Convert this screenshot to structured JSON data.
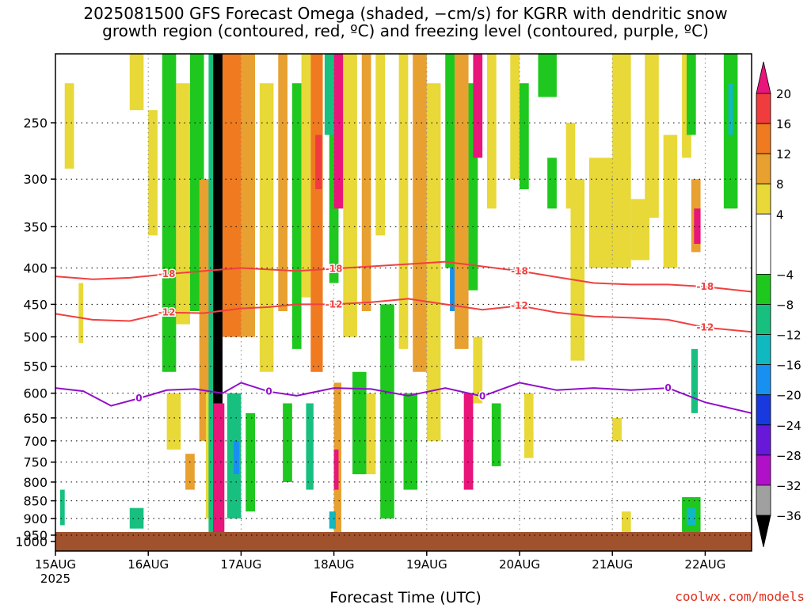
{
  "title_line1": "2025081500 GFS Forecast Omega (shaded, −cm/s) for KGRR with dendritic snow",
  "title_line2": "growth region (contoured, red, ºC) and freezing level (contoured, purple, ºC)",
  "credit": "coolwx.com/models",
  "chart_data": {
    "type": "heatmap",
    "title": "2025081500 GFS Forecast Omega (shaded, −cm/s) for KGRR with dendritic snow growth region (contoured, red, ºC) and freezing level (contoured, purple, ºC)",
    "xlabel": "Forecast Time (UTC)",
    "ylabel": "",
    "x_ticks": [
      "15AUG",
      "16AUG",
      "17AUG",
      "18AUG",
      "19AUG",
      "20AUG",
      "21AUG",
      "22AUG"
    ],
    "x_year": "2025",
    "xlim_days": [
      0,
      7.5
    ],
    "y_ticks": [
      250,
      300,
      350,
      400,
      450,
      500,
      550,
      600,
      650,
      700,
      750,
      800,
      850,
      900,
      950,
      1000
    ],
    "ylim_hpa": [
      200,
      1000
    ],
    "y_scale": "log",
    "grid": true,
    "colorbar_labels": [
      20,
      16,
      12,
      8,
      4,
      -4,
      -8,
      -12,
      -16,
      -20,
      -24,
      -28,
      -32,
      -36
    ],
    "colorbar": [
      {
        "lo": 20,
        "hi": 24,
        "color": "#e8157a"
      },
      {
        "lo": 16,
        "hi": 20,
        "color": "#f03c3c"
      },
      {
        "lo": 12,
        "hi": 16,
        "color": "#f07a20"
      },
      {
        "lo": 8,
        "hi": 12,
        "color": "#e8a030"
      },
      {
        "lo": 4,
        "hi": 8,
        "color": "#e8d838"
      },
      {
        "lo": -4,
        "hi": 4,
        "color": "#ffffff"
      },
      {
        "lo": -8,
        "hi": -4,
        "color": "#1ec81e"
      },
      {
        "lo": -12,
        "hi": -8,
        "color": "#18c080"
      },
      {
        "lo": -16,
        "hi": -12,
        "color": "#10b8c0"
      },
      {
        "lo": -20,
        "hi": -16,
        "color": "#1890f0"
      },
      {
        "lo": -24,
        "hi": -20,
        "color": "#1838e0"
      },
      {
        "lo": -28,
        "hi": -24,
        "color": "#6818d8"
      },
      {
        "lo": -32,
        "hi": -28,
        "color": "#b010c8"
      },
      {
        "lo": -36,
        "hi": -32,
        "color": "#a0a0a0"
      },
      {
        "lo": -40,
        "hi": -36,
        "color": "#000000"
      }
    ],
    "ground_color": "#a0522d",
    "contours": [
      {
        "name": "-18",
        "color": "#f04040",
        "labels": [
          "-18",
          "-18",
          "-18",
          "-18"
        ],
        "points": [
          [
            0.0,
            411
          ],
          [
            0.4,
            415
          ],
          [
            0.8,
            413
          ],
          [
            1.2,
            408
          ],
          [
            1.6,
            404
          ],
          [
            2.0,
            400
          ],
          [
            2.3,
            402
          ],
          [
            2.6,
            404
          ],
          [
            3.0,
            401
          ],
          [
            3.4,
            398
          ],
          [
            3.8,
            395
          ],
          [
            4.2,
            392
          ],
          [
            4.6,
            398
          ],
          [
            5.0,
            404
          ],
          [
            5.4,
            412
          ],
          [
            5.8,
            420
          ],
          [
            6.2,
            422
          ],
          [
            6.6,
            422
          ],
          [
            7.0,
            425
          ],
          [
            7.5,
            432
          ]
        ]
      },
      {
        "name": "-12",
        "color": "#f04040",
        "labels": [
          "-12",
          "-12",
          "-12",
          "-12"
        ],
        "points": [
          [
            0.0,
            464
          ],
          [
            0.4,
            473
          ],
          [
            0.8,
            475
          ],
          [
            1.2,
            462
          ],
          [
            1.6,
            463
          ],
          [
            2.0,
            456
          ],
          [
            2.3,
            454
          ],
          [
            2.6,
            450
          ],
          [
            3.0,
            450
          ],
          [
            3.4,
            447
          ],
          [
            3.8,
            442
          ],
          [
            4.2,
            450
          ],
          [
            4.6,
            458
          ],
          [
            5.0,
            452
          ],
          [
            5.4,
            462
          ],
          [
            5.8,
            468
          ],
          [
            6.2,
            470
          ],
          [
            6.6,
            473
          ],
          [
            7.0,
            485
          ],
          [
            7.5,
            492
          ]
        ]
      },
      {
        "name": "0",
        "color": "#9010c8",
        "labels": [
          "0",
          "0",
          "0",
          "0"
        ],
        "points": [
          [
            0.0,
            590
          ],
          [
            0.3,
            596
          ],
          [
            0.6,
            625
          ],
          [
            0.9,
            610
          ],
          [
            1.2,
            594
          ],
          [
            1.5,
            592
          ],
          [
            1.8,
            600
          ],
          [
            2.0,
            580
          ],
          [
            2.3,
            597
          ],
          [
            2.6,
            605
          ],
          [
            3.0,
            590
          ],
          [
            3.4,
            592
          ],
          [
            3.8,
            605
          ],
          [
            4.2,
            590
          ],
          [
            4.6,
            606
          ],
          [
            5.0,
            580
          ],
          [
            5.4,
            594
          ],
          [
            5.8,
            590
          ],
          [
            6.2,
            594
          ],
          [
            6.6,
            590
          ],
          [
            7.0,
            618
          ],
          [
            7.5,
            640
          ]
        ]
      }
    ],
    "shading": [
      {
        "t0": 0.1,
        "t1": 0.2,
        "p0": 220,
        "p1": 290,
        "v": 5
      },
      {
        "t0": 0.25,
        "t1": 0.3,
        "p0": 420,
        "p1": 510,
        "v": 6
      },
      {
        "t0": 0.05,
        "t1": 0.1,
        "p0": 820,
        "p1": 920,
        "v": -10
      },
      {
        "t0": 0.8,
        "t1": 0.95,
        "p0": 870,
        "p1": 930,
        "v": -10
      },
      {
        "t0": 0.8,
        "t1": 0.95,
        "p0": 200,
        "p1": 240,
        "v": 5
      },
      {
        "t0": 1.0,
        "t1": 1.1,
        "p0": 240,
        "p1": 360,
        "v": 5
      },
      {
        "t0": 1.15,
        "t1": 1.3,
        "p0": 200,
        "p1": 560,
        "v": -6
      },
      {
        "t0": 1.2,
        "t1": 1.35,
        "p0": 600,
        "p1": 720,
        "v": 6
      },
      {
        "t0": 1.3,
        "t1": 1.45,
        "p0": 220,
        "p1": 480,
        "v": 6
      },
      {
        "t0": 1.4,
        "t1": 1.5,
        "p0": 730,
        "p1": 820,
        "v": 10
      },
      {
        "t0": 1.45,
        "t1": 1.6,
        "p0": 200,
        "p1": 460,
        "v": -6
      },
      {
        "t0": 1.55,
        "t1": 1.68,
        "p0": 300,
        "p1": 700,
        "v": 8
      },
      {
        "t0": 1.62,
        "t1": 1.72,
        "p0": 600,
        "p1": 900,
        "v": 6
      },
      {
        "t0": 1.65,
        "t1": 1.72,
        "p0": 200,
        "p1": 960,
        "v": -12
      },
      {
        "t0": 1.7,
        "t1": 1.8,
        "p0": 200,
        "p1": 990,
        "v": -40
      },
      {
        "t0": 1.7,
        "t1": 1.82,
        "p0": 620,
        "p1": 960,
        "v": 20
      },
      {
        "t0": 1.8,
        "t1": 2.0,
        "p0": 200,
        "p1": 500,
        "v": 12
      },
      {
        "t0": 1.85,
        "t1": 2.0,
        "p0": 600,
        "p1": 900,
        "v": -12
      },
      {
        "t0": 1.92,
        "t1": 1.98,
        "p0": 700,
        "p1": 780,
        "v": -20
      },
      {
        "t0": 2.0,
        "t1": 2.15,
        "p0": 200,
        "p1": 500,
        "v": 10
      },
      {
        "t0": 2.05,
        "t1": 2.15,
        "p0": 640,
        "p1": 880,
        "v": -6
      },
      {
        "t0": 2.2,
        "t1": 2.35,
        "p0": 220,
        "p1": 560,
        "v": 5
      },
      {
        "t0": 2.4,
        "t1": 2.5,
        "p0": 200,
        "p1": 460,
        "v": 8
      },
      {
        "t0": 2.45,
        "t1": 2.55,
        "p0": 620,
        "p1": 800,
        "v": -8
      },
      {
        "t0": 2.55,
        "t1": 2.65,
        "p0": 220,
        "p1": 520,
        "v": -6
      },
      {
        "t0": 2.65,
        "t1": 2.75,
        "p0": 200,
        "p1": 440,
        "v": 5
      },
      {
        "t0": 2.7,
        "t1": 2.78,
        "p0": 620,
        "p1": 820,
        "v": -10
      },
      {
        "t0": 2.75,
        "t1": 2.88,
        "p0": 200,
        "p1": 560,
        "v": 12
      },
      {
        "t0": 2.8,
        "t1": 2.87,
        "p0": 260,
        "p1": 310,
        "v": 18
      },
      {
        "t0": 2.95,
        "t1": 3.05,
        "p0": 200,
        "p1": 420,
        "v": -6
      },
      {
        "t0": 3.0,
        "t1": 3.08,
        "p0": 580,
        "p1": 950,
        "v": 10
      },
      {
        "t0": 3.0,
        "t1": 3.05,
        "p0": 720,
        "p1": 820,
        "v": 20
      },
      {
        "t0": 2.95,
        "t1": 3.02,
        "p0": 880,
        "p1": 930,
        "v": -16
      },
      {
        "t0": 2.9,
        "t1": 3.0,
        "p0": 200,
        "p1": 260,
        "v": -12
      },
      {
        "t0": 3.0,
        "t1": 3.1,
        "p0": 200,
        "p1": 330,
        "v": 20
      },
      {
        "t0": 3.1,
        "t1": 3.25,
        "p0": 200,
        "p1": 500,
        "v": 6
      },
      {
        "t0": 3.2,
        "t1": 3.35,
        "p0": 560,
        "p1": 780,
        "v": -8
      },
      {
        "t0": 3.3,
        "t1": 3.4,
        "p0": 200,
        "p1": 460,
        "v": 8
      },
      {
        "t0": 3.35,
        "t1": 3.45,
        "p0": 600,
        "p1": 780,
        "v": 6
      },
      {
        "t0": 3.45,
        "t1": 3.55,
        "p0": 200,
        "p1": 360,
        "v": 5
      },
      {
        "t0": 3.5,
        "t1": 3.65,
        "p0": 450,
        "p1": 900,
        "v": -8
      },
      {
        "t0": 3.7,
        "t1": 3.8,
        "p0": 200,
        "p1": 520,
        "v": 6
      },
      {
        "t0": 3.75,
        "t1": 3.9,
        "p0": 600,
        "p1": 820,
        "v": -6
      },
      {
        "t0": 3.85,
        "t1": 4.0,
        "p0": 200,
        "p1": 560,
        "v": 8
      },
      {
        "t0": 4.0,
        "t1": 4.15,
        "p0": 220,
        "p1": 700,
        "v": 5
      },
      {
        "t0": 4.2,
        "t1": 4.3,
        "p0": 200,
        "p1": 400,
        "v": -8
      },
      {
        "t0": 4.25,
        "t1": 4.35,
        "p0": 400,
        "p1": 460,
        "v": -20
      },
      {
        "t0": 4.3,
        "t1": 4.45,
        "p0": 200,
        "p1": 520,
        "v": 8
      },
      {
        "t0": 4.4,
        "t1": 4.5,
        "p0": 600,
        "p1": 820,
        "v": 20
      },
      {
        "t0": 4.45,
        "t1": 4.55,
        "p0": 220,
        "p1": 430,
        "v": -6
      },
      {
        "t0": 4.5,
        "t1": 4.6,
        "p0": 200,
        "p1": 280,
        "v": 20
      },
      {
        "t0": 4.5,
        "t1": 4.6,
        "p0": 500,
        "p1": 620,
        "v": 6
      },
      {
        "t0": 4.65,
        "t1": 4.75,
        "p0": 200,
        "p1": 330,
        "v": 5
      },
      {
        "t0": 4.7,
        "t1": 4.8,
        "p0": 620,
        "p1": 760,
        "v": -6
      },
      {
        "t0": 4.9,
        "t1": 5.0,
        "p0": 200,
        "p1": 300,
        "v": 6
      },
      {
        "t0": 5.0,
        "t1": 5.1,
        "p0": 220,
        "p1": 310,
        "v": -8
      },
      {
        "t0": 5.05,
        "t1": 5.15,
        "p0": 600,
        "p1": 740,
        "v": 5
      },
      {
        "t0": 5.3,
        "t1": 5.4,
        "p0": 280,
        "p1": 330,
        "v": -6
      },
      {
        "t0": 5.2,
        "t1": 5.4,
        "p0": 200,
        "p1": 230,
        "v": -6
      },
      {
        "t0": 5.5,
        "t1": 5.6,
        "p0": 250,
        "p1": 330,
        "v": 5
      },
      {
        "t0": 5.55,
        "t1": 5.7,
        "p0": 300,
        "p1": 540,
        "v": 6
      },
      {
        "t0": 5.75,
        "t1": 6.2,
        "p0": 280,
        "p1": 400,
        "v": 5
      },
      {
        "t0": 6.0,
        "t1": 6.2,
        "p0": 200,
        "p1": 290,
        "v": 5
      },
      {
        "t0": 6.1,
        "t1": 6.2,
        "p0": 880,
        "p1": 950,
        "v": 6
      },
      {
        "t0": 6.2,
        "t1": 6.4,
        "p0": 320,
        "p1": 390,
        "v": 5
      },
      {
        "t0": 6.35,
        "t1": 6.5,
        "p0": 200,
        "p1": 340,
        "v": 5
      },
      {
        "t0": 6.0,
        "t1": 6.1,
        "p0": 650,
        "p1": 700,
        "v": 6
      },
      {
        "t0": 6.55,
        "t1": 6.7,
        "p0": 260,
        "p1": 400,
        "v": 5
      },
      {
        "t0": 6.75,
        "t1": 6.85,
        "p0": 200,
        "p1": 280,
        "v": 5
      },
      {
        "t0": 6.75,
        "t1": 6.95,
        "p0": 840,
        "p1": 960,
        "v": -8
      },
      {
        "t0": 6.8,
        "t1": 6.9,
        "p0": 870,
        "p1": 920,
        "v": -14
      },
      {
        "t0": 6.85,
        "t1": 6.95,
        "p0": 300,
        "p1": 380,
        "v": 8
      },
      {
        "t0": 6.88,
        "t1": 6.95,
        "p0": 330,
        "p1": 370,
        "v": 20
      },
      {
        "t0": 6.85,
        "t1": 6.92,
        "p0": 520,
        "p1": 640,
        "v": -10
      },
      {
        "t0": 6.8,
        "t1": 6.9,
        "p0": 200,
        "p1": 260,
        "v": -8
      },
      {
        "t0": 7.2,
        "t1": 7.35,
        "p0": 200,
        "p1": 330,
        "v": -8
      },
      {
        "t0": 7.25,
        "t1": 7.3,
        "p0": 220,
        "p1": 260,
        "v": -14
      }
    ]
  }
}
